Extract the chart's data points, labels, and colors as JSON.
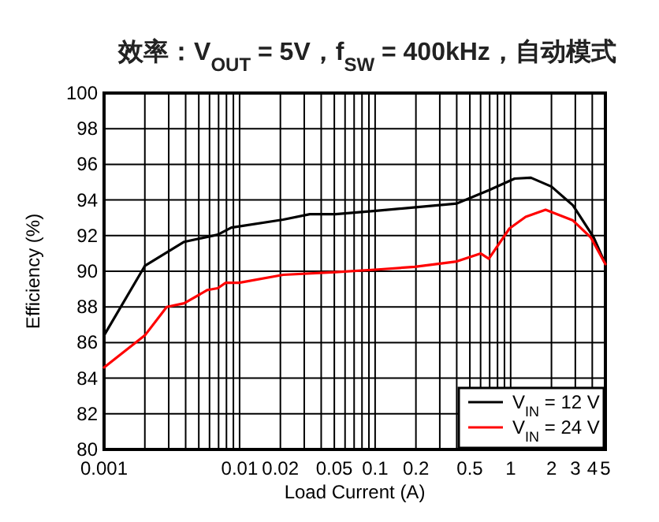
{
  "chart_data": {
    "type": "line",
    "title": "效率：V$_{OUT}$ = 5V，f$_{SW}$ = 400kHz，自动模式",
    "xlabel": "Load Current (A)",
    "ylabel": "Efficiency (%)",
    "log": "x",
    "grid": true,
    "legend": "bottom right",
    "marker": "none",
    "line_style": "solid",
    "xlim": [
      0.001,
      5
    ],
    "ylim": [
      80,
      100
    ],
    "xticks": [
      0.001,
      {
        "value": 0.002,
        "label": null
      },
      {
        "value": 0.003,
        "label": null
      },
      {
        "value": 0.004,
        "label": null
      },
      {
        "value": 0.005,
        "label": null
      },
      {
        "value": 0.006,
        "label": null
      },
      {
        "value": 0.007,
        "label": null
      },
      {
        "value": 0.008,
        "label": null
      },
      {
        "value": 0.009,
        "label": null
      },
      0.01,
      0.02,
      {
        "value": 0.03,
        "label": null
      },
      {
        "value": 0.04,
        "label": null
      },
      0.05,
      {
        "value": 0.06,
        "label": null
      },
      {
        "value": 0.07,
        "label": null
      },
      {
        "value": 0.08,
        "label": null
      },
      {
        "value": 0.09,
        "label": null
      },
      0.1,
      0.2,
      {
        "value": 0.3,
        "label": null
      },
      {
        "value": 0.4,
        "label": null
      },
      0.5,
      {
        "value": 0.6,
        "label": null
      },
      {
        "value": 0.7,
        "label": null
      },
      {
        "value": 0.8,
        "label": null
      },
      {
        "value": 0.9,
        "label": null
      },
      1,
      2,
      3,
      4,
      5
    ],
    "yticks": [
      80,
      82,
      84,
      86,
      88,
      90,
      92,
      94,
      96,
      98,
      100
    ],
    "series": [
      {
        "name": "V$_{IN}$ = 12 V",
        "color": "#000000",
        "x": [
          0.001,
          0.002,
          0.0039,
          0.0069,
          0.0087,
          0.021,
          0.033,
          0.051,
          0.105,
          0.4,
          0.69,
          1.07,
          1.41,
          2.0,
          2.88,
          4.1,
          5
        ],
        "values": [
          86.4,
          90.3,
          91.65,
          92.05,
          92.45,
          92.9,
          93.2,
          93.2,
          93.4,
          93.8,
          94.55,
          95.2,
          95.25,
          94.75,
          93.7,
          91.9,
          90.4
        ]
      },
      {
        "name": "V$_{IN}$ = 24 V",
        "color": "#ff0000",
        "x": [
          0.001,
          0.002,
          0.0029,
          0.0039,
          0.0058,
          0.0069,
          0.0079,
          0.0099,
          0.021,
          0.051,
          0.105,
          0.196,
          0.4,
          0.6,
          0.69,
          0.98,
          1.29,
          1.81,
          2.88,
          3.9,
          5
        ],
        "values": [
          84.6,
          86.4,
          88.0,
          88.2,
          88.95,
          89.05,
          89.35,
          89.35,
          89.8,
          89.95,
          90.1,
          90.25,
          90.55,
          91.0,
          90.7,
          92.4,
          93.05,
          93.45,
          92.85,
          91.9,
          90.4
        ]
      }
    ]
  }
}
